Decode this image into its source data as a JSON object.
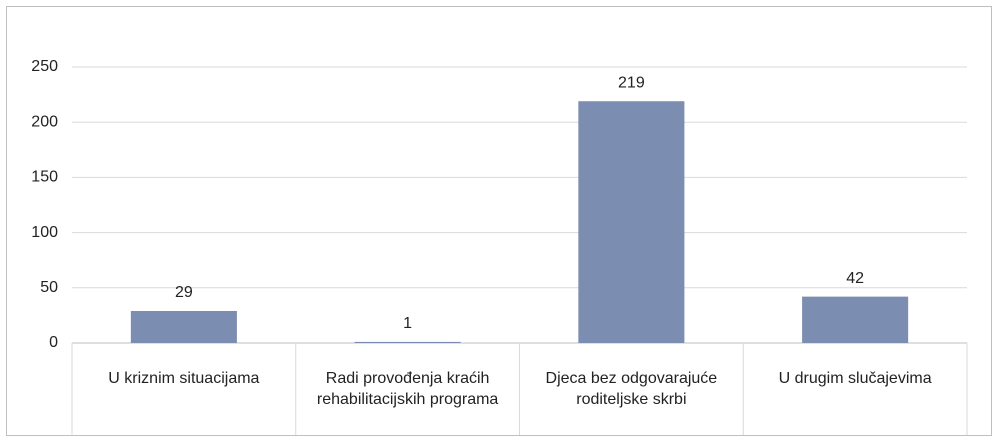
{
  "chart_data": {
    "type": "bar",
    "categories": [
      "U kriznim situacijama",
      "Radi provođenja kraćih rehabilitacijskih programa",
      "Djeca bez odgovarajuće roditeljske skrbi",
      "U drugim slučajevima"
    ],
    "values": [
      29,
      1,
      219,
      42
    ],
    "color": "#7b8db0",
    "ylim": [
      0,
      250
    ],
    "yticks": [
      0,
      50,
      100,
      150,
      200,
      250
    ],
    "grid": true
  }
}
